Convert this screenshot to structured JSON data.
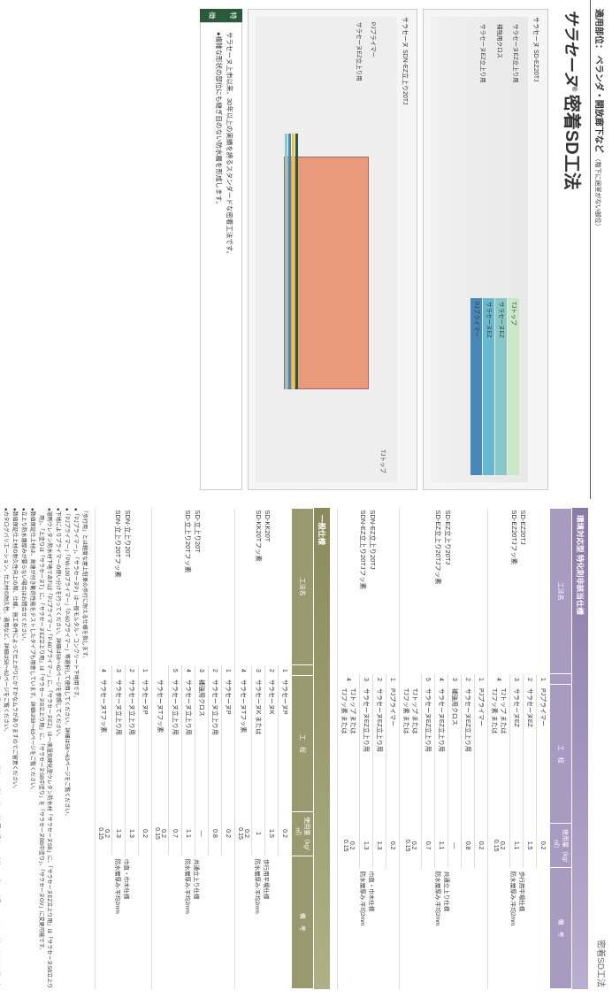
{
  "header": {
    "prefix": "適用部位：",
    "areas": "ベランダ・開放廊下など",
    "suffix": "（階下に居室がない部位）"
  },
  "title": {
    "logo": "サラセーヌ",
    "reg": "®",
    "main": "密着SD工法"
  },
  "diagram1": {
    "title": "サラセーヌ SD-EZ20TJ",
    "leftLabels": [
      "サラセーヌEZ立上り用",
      "補強用クロス",
      "サラセーヌEZ立上り用"
    ],
    "layers": [
      {
        "label": "TJトップ",
        "color": "#c8e8c8"
      },
      {
        "label": "サラセーヌEZ",
        "color": "#88c8c8"
      },
      {
        "label": "サラセーヌEZ",
        "color": "#68b8d0"
      },
      {
        "label": "PJプライマー",
        "color": "#4888b8"
      }
    ]
  },
  "diagram2": {
    "title": "サラセーヌ SDN-EZ立上り20TJ",
    "leftLabels": [
      "PJプライマー",
      "サラセーヌEZ立上り用"
    ],
    "rightLabel": "TJトップ",
    "edgeColors": [
      "#2a5a3a",
      "#e8c848",
      "#4888b8",
      "#88c8c8"
    ]
  },
  "feature": {
    "tag": "特　徴",
    "lines": [
      "サラセーヌ上市以来、30年以上の実績を誇るスタンダードな密着工法です。",
      "●複雑な形状の部位にも継ぎ目のない防水層を形成します。"
    ]
  },
  "rightTitle": "密着SD工法",
  "envSpecTitle": "環境対応型 特化則非該当仕様",
  "genSpecTitle": "一般仕様",
  "tableHeaders": {
    "method": "工法名",
    "num": "",
    "process": "工　程",
    "qty": "使用量（kg/㎡）",
    "note": "備　考"
  },
  "envMethods": [
    {
      "name": "SD-EZ20TJ",
      "sub": "SD-EZ20TJフッ素",
      "rows": [
        {
          "n": "1",
          "p": "PJプライマー",
          "q": "0.2",
          "note": "歩行用平場仕様\n防水層厚み:平均2mm"
        },
        {
          "n": "2",
          "p": "サラセーヌEZ",
          "q": "1.5"
        },
        {
          "n": "3",
          "p": "サラセーヌEZ",
          "q": "1.1"
        },
        {
          "n": "4",
          "p": "TJトップ または\nTJフッ素 または",
          "q": "0.2\n0.15"
        }
      ]
    },
    {
      "name": "SD-EZ立上り20TJ",
      "sub": "SD-EZ立上り20TJフッ素",
      "rows": [
        {
          "n": "1",
          "p": "PJプライマー",
          "q": "0.2",
          "note": "共通立上り仕様\n防水層厚み:平均2mm"
        },
        {
          "n": "2",
          "p": "サラセーヌEZ立上り用",
          "q": "0.8"
        },
        {
          "n": "3",
          "p": "補強用クロス",
          "q": "—"
        },
        {
          "n": "4",
          "p": "サラセーヌEZ立上り用",
          "q": "1.1"
        },
        {
          "n": "5",
          "p": "サラセーヌEZ立上り用",
          "q": "0.7"
        },
        {
          "n": "",
          "p": "TJトップ または\nTJフッ素 または",
          "q": "0.2\n0.15"
        }
      ]
    },
    {
      "name": "SDN-EZ立上り20TJ",
      "sub": "SDN-EZ立上り20TJフッ素",
      "rows": [
        {
          "n": "1",
          "p": "PJプライマー",
          "q": "0.2",
          "note": "巾直・巾木仕様\n防水層厚み:平均2mm"
        },
        {
          "n": "2",
          "p": "サラセーヌEZ立上り用",
          "q": "1.3"
        },
        {
          "n": "3",
          "p": "サラセーヌEZ立上り用",
          "q": "1.3"
        },
        {
          "n": "4",
          "p": "TJトップ または\nTJフッ素 または",
          "q": "0.2\n0.15"
        }
      ]
    }
  ],
  "genMethods": [
    {
      "name": "SD-KK20T",
      "sub": "SD-KK20Tフッ素",
      "rows": [
        {
          "n": "1",
          "p": "サラセーヌP",
          "q": "0.2",
          "note": "歩行用平場仕様\n防水層厚み:平均2mm"
        },
        {
          "n": "2",
          "p": "サラセーヌK",
          "q": "1.5"
        },
        {
          "n": "3",
          "p": "サラセーヌK または",
          "q": "1"
        },
        {
          "n": "4",
          "p": "サラセーヌTフッ素",
          "q": "0.2\n0.15"
        }
      ]
    },
    {
      "name": "SD-立上り20T",
      "sub": "SD-立上り20Tフッ素",
      "rows": [
        {
          "n": "1",
          "p": "サラセーヌP",
          "q": "0.2",
          "note": "共通立上り仕様\n防水層厚み:平均2mm"
        },
        {
          "n": "2",
          "p": "サラセーヌ立上り用",
          "q": "0.8"
        },
        {
          "n": "3",
          "p": "補強用クロス",
          "q": "—"
        },
        {
          "n": "4",
          "p": "サラセーヌ立上り用",
          "q": "1.1"
        },
        {
          "n": "5",
          "p": "サラセーヌ立上り用",
          "q": "0.7"
        },
        {
          "n": "",
          "p": "サラセーヌTフッ素",
          "q": "0.2\n0.15"
        }
      ]
    },
    {
      "name": "SDN-立上り20T",
      "sub": "SDN-立上り20Tフッ素",
      "rows": [
        {
          "n": "1",
          "p": "サラセーヌP",
          "q": "0.2",
          "note": "巾直・巾木仕様\n防水層厚み:平均2mm"
        },
        {
          "n": "2",
          "p": "サラセーヌ立上り用",
          "q": "1.3"
        },
        {
          "n": "3",
          "p": "サラセーヌ立上り用",
          "q": "1.3"
        },
        {
          "n": "4",
          "p": "サラセーヌTフッ素",
          "q": "0.2\n0.15"
        }
      ]
    }
  ],
  "footnotes": [
    "「歩行用」とは軽度な屋上駐車の歩行に耐える仕様を指します。",
    "●「PJプライマー」、「サラセーヌP」は一般モルタル・コンクリート下地用です。",
    "●「PJプライマー」「PW-100プライマー」「P-60プライマー」等選択して使用してください。詳細は58～63ページをご覧ください。",
    "●下地によりプライマーの使い分けを行ってください。詳細は58～62ページを参照してください。",
    "●溶剤ウレタン防水材下地であれば「PJプライマー」「P-60プライマー」に、「サラセーヌEZ」は一液湿気硬化型ウレタン防水材「サラセーヌSB」に、「サラセーヌEZ立上り用」は「サラセーヌSB立上り用」、「上塗りは「サラセーヌT」に、「サラセーヌEZ立上り用」は「サラセーヌB立上り用」に、「サラセーヌSB中塗り」を「サラセーヌBB中塗り」、「サラセーヌGV」に変更可能です。",
    "●数値保証仕上材は、高速が付き動的性能をテストしたタイプも用意しています。詳細は58～63ページをご覧ください。",
    "●立上り防水層厚みが要らない場合はお問合せください。",
    "●数値保証仕上材の耐久性向上の際、仕様、施工条件によって仕上がりにかすかなムラがありますのでご留意ください。",
    "●カタログバリエーション、仕上材の耐久性、通用など、詳細は58～62ページをご覧ください。",
    "●カラーバリエーション、仕上りイメージと実際の色調に若干の相違が見られる場合があります。このため、厳密に同系色の施工が必要な場合は、事前サンプルで確認してください（小屋根など、厳し方向の交換で経験や留渡などが見られる場合は補強用クロスを使用してください。）",
    "注2：補強用クロスの層間で分割せず、補強用クロスを複数して計算します。但、軽量ウレタン工法にあってはこの限りではありません。"
  ]
}
